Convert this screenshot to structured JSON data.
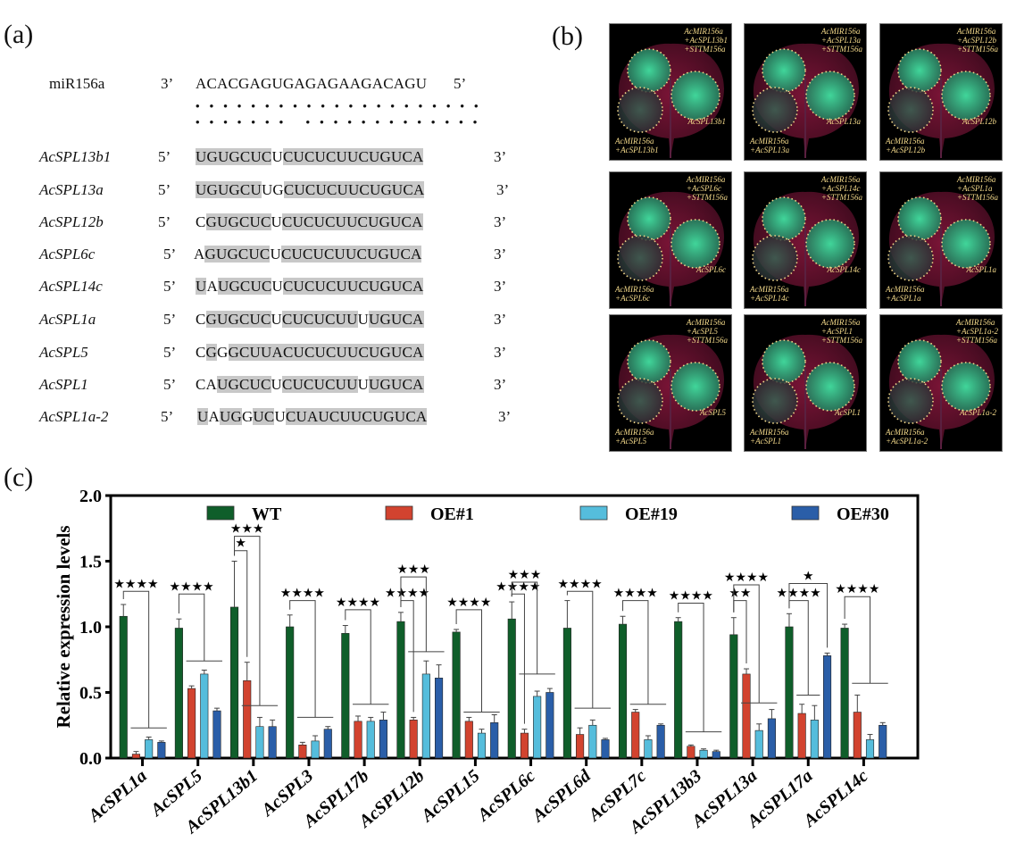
{
  "panels": {
    "a": {
      "label": "(a)",
      "mirna": {
        "name": "miR156a",
        "left_end": "3’",
        "sequence": "ACACGAGUGAGAGAAGACAGU",
        "right_end": "5’"
      },
      "pairing_dots_top": "• • • • • • • • • • • • • • • • • • • • •",
      "pairing_dots_bottom": "• • • • • • •   • • • • • • • • • • • • •",
      "targets": [
        {
          "name": "AcSPL13b1",
          "left_end": "5’",
          "right_end": "3’",
          "segments": [
            [
              "UGUGCUC",
              true
            ],
            [
              "U",
              false
            ],
            [
              "CUCUCUUCUGUCA",
              true
            ]
          ]
        },
        {
          "name": "AcSPL13a",
          "left_end": "5’",
          "right_end": "3’",
          "segments": [
            [
              "UGUGCU",
              true
            ],
            [
              "UG",
              false
            ],
            [
              "CUCUCUUCUGUCA",
              true
            ]
          ]
        },
        {
          "name": "AcSPL12b",
          "left_end": "5’",
          "right_end": "3’",
          "segments": [
            [
              "C",
              false
            ],
            [
              "GUGCUC",
              true
            ],
            [
              "U",
              false
            ],
            [
              "CUCUCUUCUGUCA",
              true
            ]
          ]
        },
        {
          "name": "AcSPL6c",
          "left_end": "5’",
          "right_end": "3’",
          "segments": [
            [
              "A",
              false
            ],
            [
              "GUGCUC",
              true
            ],
            [
              "U",
              false
            ],
            [
              "CUCUCUUCUGUCA",
              true
            ]
          ]
        },
        {
          "name": "AcSPL14c",
          "left_end": "5’",
          "right_end": "3’",
          "segments": [
            [
              "U",
              true
            ],
            [
              "A",
              false
            ],
            [
              "UGCUC",
              true
            ],
            [
              "U",
              false
            ],
            [
              "CUCUCUUCUGUCA",
              true
            ]
          ]
        },
        {
          "name": "AcSPL1a",
          "left_end": "5’",
          "right_end": "3’",
          "segments": [
            [
              "C",
              false
            ],
            [
              "GUGCUC",
              true
            ],
            [
              "U",
              false
            ],
            [
              "CUCUCUU",
              true
            ],
            [
              "U",
              false
            ],
            [
              "UGUCA",
              true
            ]
          ]
        },
        {
          "name": "AcSPL5",
          "left_end": "5’",
          "right_end": "3’",
          "segments": [
            [
              "C",
              false
            ],
            [
              "G",
              true
            ],
            [
              "G",
              false
            ],
            [
              "GCUU",
              true
            ],
            [
              "ACUCUCUUCUGUCA",
              true
            ]
          ]
        },
        {
          "name": "AcSPL1",
          "left_end": "5’",
          "right_end": "3’",
          "segments": [
            [
              "CA",
              false
            ],
            [
              "UGCUC",
              true
            ],
            [
              "U",
              false
            ],
            [
              "CUCUCUU",
              true
            ],
            [
              "U",
              false
            ],
            [
              "UGUCA",
              true
            ]
          ]
        },
        {
          "name": "AcSPL1a-2",
          "left_end": "5’",
          "right_end": "3’",
          "segments": [
            [
              "U",
              true
            ],
            [
              "A",
              false
            ],
            [
              "UG",
              true
            ],
            [
              "G",
              false
            ],
            [
              "UC",
              true
            ],
            [
              "U",
              false
            ],
            [
              "CUAUCUUCUGUCA",
              true
            ]
          ]
        }
      ]
    },
    "b": {
      "label": "(b)",
      "leaves": [
        {
          "label_top": [
            "AcMIR156a",
            "+AcSPL13b1",
            "+STTM156a"
          ],
          "label_right": "AcSPL13b1",
          "label_bottom": [
            "AcMIR156a",
            "+AcSPL13b1"
          ]
        },
        {
          "label_top": [
            "AcMIR156a",
            "+AcSPL13a",
            "+STTM156a"
          ],
          "label_right": "AcSPL13a",
          "label_bottom": [
            "AcMIR156a",
            "+AcSPL13a"
          ]
        },
        {
          "label_top": [
            "AcMIR156a",
            "+AcSPL12b",
            "+STTM156a"
          ],
          "label_right": "AcSPL12b",
          "label_bottom": [
            "AcMIR156a",
            "+AcSPL12b"
          ]
        },
        {
          "label_top": [
            "AcMIR156a",
            "+AcSPL6c",
            "+STTM156a"
          ],
          "label_right": "AcSPL6c",
          "label_bottom": [
            "AcMIR156a",
            "+AcSPL6c"
          ]
        },
        {
          "label_top": [
            "AcMIR156a",
            "+AcSPL14c",
            "+STTM156a"
          ],
          "label_right": "AcSPL14c",
          "label_bottom": [
            "AcMIR156a",
            "+AcSPL14c"
          ]
        },
        {
          "label_top": [
            "AcMIR156a",
            "+AcSPL1a",
            "+STTM156a"
          ],
          "label_right": "AcSPL1a",
          "label_bottom": [
            "AcMIR156a",
            "+AcSPL1a"
          ]
        },
        {
          "label_top": [
            "AcMIR156a",
            "+AcSPL5",
            "+STTM156a"
          ],
          "label_right": "AcSPL5",
          "label_bottom": [
            "AcMIR156a",
            "+AcSPL5"
          ]
        },
        {
          "label_top": [
            "AcMIR156a",
            "+AcSPL1",
            "+STTM156a"
          ],
          "label_right": "AcSPL1",
          "label_bottom": [
            "AcMIR156a",
            "+AcSPL1"
          ]
        },
        {
          "label_top": [
            "AcMIR156a",
            "+AcSPL1a-2",
            "+STTM156a"
          ],
          "label_right": "AcSPL1a-2",
          "label_bottom": [
            "AcMIR156a",
            "+AcSPL1a-2"
          ]
        }
      ],
      "colors": {
        "label": "#f3d98a",
        "fluorescence": "#3fe0a0",
        "leaf": "#7a1436"
      }
    },
    "c": {
      "label": "(c)"
    }
  },
  "chart_data": {
    "type": "bar",
    "ylabel": "Relative expression levels",
    "xlabel": "",
    "ylim": [
      0,
      2.0
    ],
    "yticks": [
      "0.0",
      "0.5",
      "1.0",
      "1.5",
      "2.0"
    ],
    "legend_position": "top",
    "categories": [
      "AcSPL1a",
      "AcSPL5",
      "AcSPL13b1",
      "AcSPL3",
      "AcSPL17b",
      "AcSPL12b",
      "AcSPL15",
      "AcSPL6c",
      "AcSPL6d",
      "AcSPL7c",
      "AcSPL13b3",
      "AcSPL13a",
      "AcSPL17a",
      "AcSPL14c"
    ],
    "series": [
      {
        "name": "WT",
        "color": "#0f5e2a",
        "values": [
          1.08,
          0.99,
          1.15,
          1.0,
          0.95,
          1.04,
          0.96,
          1.06,
          0.99,
          1.02,
          1.04,
          0.94,
          1.0,
          0.99
        ],
        "errors": [
          0.09,
          0.07,
          0.35,
          0.09,
          0.06,
          0.07,
          0.02,
          0.13,
          0.21,
          0.06,
          0.03,
          0.13,
          0.1,
          0.03
        ]
      },
      {
        "name": "OE#1",
        "color": "#d2432f",
        "values": [
          0.03,
          0.53,
          0.59,
          0.1,
          0.28,
          0.29,
          0.28,
          0.19,
          0.18,
          0.35,
          0.09,
          0.64,
          0.34,
          0.35
        ],
        "errors": [
          0.02,
          0.02,
          0.14,
          0.02,
          0.04,
          0.02,
          0.03,
          0.03,
          0.05,
          0.02,
          0.01,
          0.04,
          0.07,
          0.13
        ]
      },
      {
        "name": "OE#19",
        "color": "#55bddc",
        "values": [
          0.14,
          0.64,
          0.24,
          0.13,
          0.28,
          0.64,
          0.19,
          0.47,
          0.25,
          0.14,
          0.06,
          0.21,
          0.29,
          0.14
        ],
        "errors": [
          0.02,
          0.03,
          0.07,
          0.04,
          0.03,
          0.1,
          0.03,
          0.04,
          0.04,
          0.03,
          0.01,
          0.05,
          0.11,
          0.04
        ]
      },
      {
        "name": "OE#30",
        "color": "#2a5ea8",
        "values": [
          0.12,
          0.36,
          0.24,
          0.22,
          0.29,
          0.61,
          0.27,
          0.5,
          0.14,
          0.25,
          0.05,
          0.3,
          0.78,
          0.25
        ],
        "errors": [
          0.01,
          0.02,
          0.05,
          0.02,
          0.06,
          0.1,
          0.06,
          0.03,
          0.01,
          0.01,
          0.01,
          0.07,
          0.02,
          0.02
        ]
      }
    ],
    "significance": [
      {
        "category": "AcSPL1a",
        "brackets": [
          {
            "label": "****",
            "to": "group",
            "line_y": 0.23,
            "top_y": 1.27
          }
        ]
      },
      {
        "category": "AcSPL5",
        "brackets": [
          {
            "label": "****",
            "to": "group",
            "line_y": 0.74,
            "top_y": 1.25
          }
        ]
      },
      {
        "category": "AcSPL13b1",
        "brackets": [
          {
            "label": "*",
            "to": "OE#1",
            "top_y": 1.58
          },
          {
            "label": "***",
            "to": "group",
            "line_y": 0.4,
            "top_y": 1.69
          }
        ]
      },
      {
        "category": "AcSPL3",
        "brackets": [
          {
            "label": "****",
            "to": "group",
            "line_y": 0.31,
            "top_y": 1.2
          }
        ]
      },
      {
        "category": "AcSPL17b",
        "brackets": [
          {
            "label": "****",
            "to": "group",
            "line_y": 0.41,
            "top_y": 1.13
          }
        ]
      },
      {
        "category": "AcSPL12b",
        "brackets": [
          {
            "label": "****",
            "to": "OE#1",
            "top_y": 1.2
          },
          {
            "label": "***",
            "to": "group",
            "line_y": 0.81,
            "top_y": 1.38
          }
        ]
      },
      {
        "category": "AcSPL15",
        "brackets": [
          {
            "label": "****",
            "to": "group",
            "line_y": 0.35,
            "top_y": 1.13
          }
        ]
      },
      {
        "category": "AcSPL6c",
        "brackets": [
          {
            "label": "****",
            "to": "OE#1",
            "top_y": 1.25
          },
          {
            "label": "***",
            "to": "group",
            "line_y": 0.64,
            "top_y": 1.34
          }
        ]
      },
      {
        "category": "AcSPL6d",
        "brackets": [
          {
            "label": "****",
            "to": "group",
            "line_y": 0.38,
            "top_y": 1.27
          }
        ]
      },
      {
        "category": "AcSPL7c",
        "brackets": [
          {
            "label": "****",
            "to": "group",
            "line_y": 0.41,
            "top_y": 1.2
          }
        ]
      },
      {
        "category": "AcSPL13b3",
        "brackets": [
          {
            "label": "****",
            "to": "group",
            "line_y": 0.2,
            "top_y": 1.18
          }
        ]
      },
      {
        "category": "AcSPL13a",
        "brackets": [
          {
            "label": "**",
            "to": "OE#1",
            "top_y": 1.2
          },
          {
            "label": "****",
            "to": "group",
            "line_y": 0.42,
            "top_y": 1.32
          }
        ]
      },
      {
        "category": "AcSPL17a",
        "brackets": [
          {
            "label": "****",
            "to": "group-12",
            "line_y": 0.48,
            "top_y": 1.2
          },
          {
            "label": "*",
            "to": "OE#30",
            "top_y": 1.33
          }
        ]
      },
      {
        "category": "AcSPL14c",
        "brackets": [
          {
            "label": "****",
            "to": "group",
            "line_y": 0.57,
            "top_y": 1.23
          }
        ]
      }
    ]
  }
}
